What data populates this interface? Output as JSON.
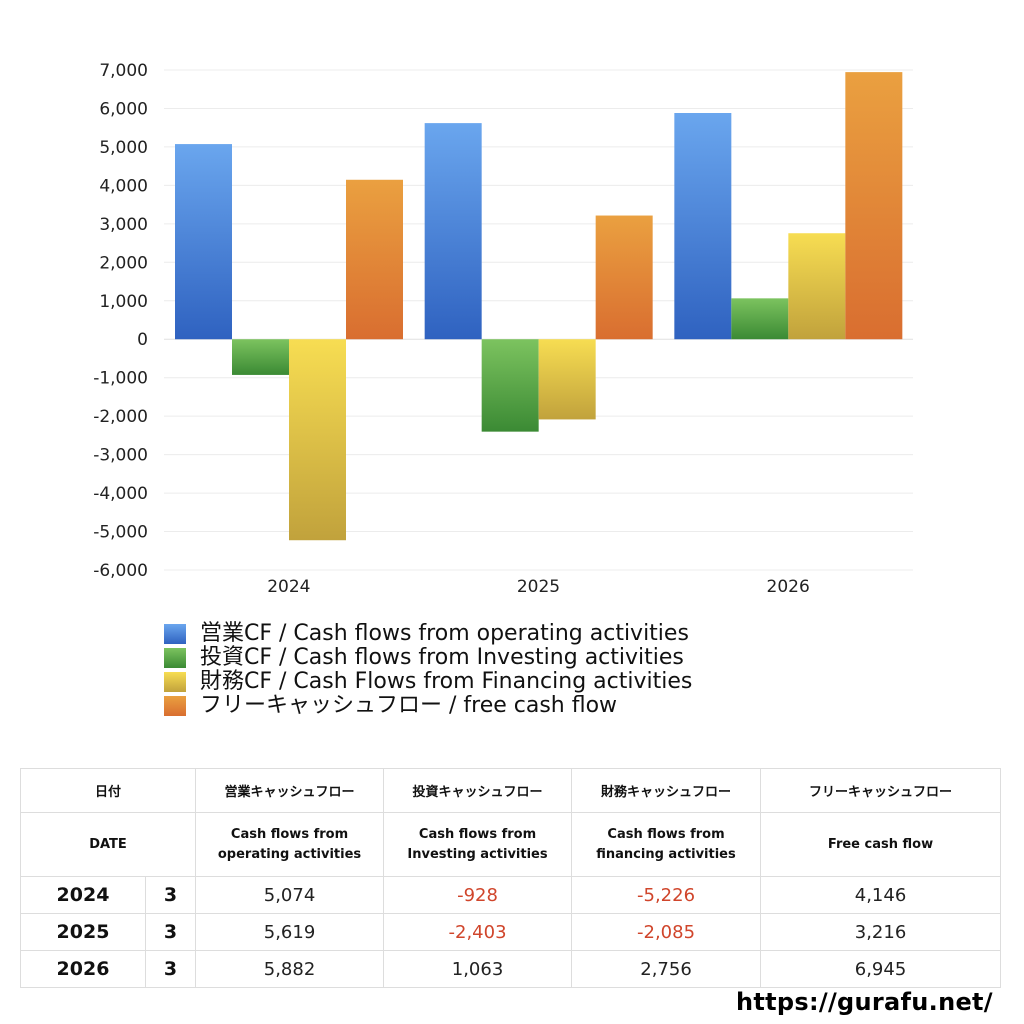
{
  "chart_data": {
    "type": "bar",
    "categories": [
      "2024",
      "2025",
      "2026"
    ],
    "ylim": [
      -6000,
      7000
    ],
    "yticks": [
      7000,
      6000,
      5000,
      4000,
      3000,
      2000,
      1000,
      0,
      -1000,
      -2000,
      -3000,
      -4000,
      -5000,
      -6000
    ],
    "ytick_labels": [
      "7,000",
      "6,000",
      "5,000",
      "4,000",
      "3,000",
      "2,000",
      "1,000",
      "0",
      "-1,000",
      "-2,000",
      "-3,000",
      "-4,000",
      "-5,000",
      "-6,000"
    ],
    "grid": true,
    "legend_position": "bottom",
    "series": [
      {
        "name": "営業CF / Cash flows from operating activities",
        "values": [
          5074,
          5619,
          5882
        ],
        "color": "#3f7fd6"
      },
      {
        "name": "投資CF / Cash flows from Investing activities",
        "values": [
          -928,
          -2403,
          1063
        ],
        "color": "#4e9e3e"
      },
      {
        "name": "財務CF / Cash Flows from Financing activities",
        "values": [
          -5226,
          -2085,
          2756
        ],
        "color": "#e3cc45"
      },
      {
        "name": "フリーキャッシュフロー / free cash flow",
        "values": [
          4146,
          3216,
          6945
        ],
        "color": "#e08a3a"
      }
    ]
  },
  "table": {
    "header_row1": [
      "日付",
      "営業キャッシュフロー",
      "投資キャッシュフロー",
      "財務キャッシュフロー",
      "フリーキャッシュフロー"
    ],
    "header_row2_date": "DATE",
    "header_row2": [
      [
        "Cash flows from",
        "operating activities"
      ],
      [
        "Cash flows from",
        "Investing activities"
      ],
      [
        "Cash flows from",
        "financing activities"
      ],
      [
        "Free cash flow",
        ""
      ]
    ],
    "rows": [
      {
        "year": "2024",
        "month": "3",
        "values": [
          "5,074",
          "-928",
          "-5,226",
          "4,146"
        ]
      },
      {
        "year": "2025",
        "month": "3",
        "values": [
          "5,619",
          "-2,403",
          "-2,085",
          "3,216"
        ]
      },
      {
        "year": "2026",
        "month": "3",
        "values": [
          "5,882",
          "1,063",
          "2,756",
          "6,945"
        ]
      }
    ]
  },
  "footer": {
    "url": "https://gurafu.net/"
  }
}
